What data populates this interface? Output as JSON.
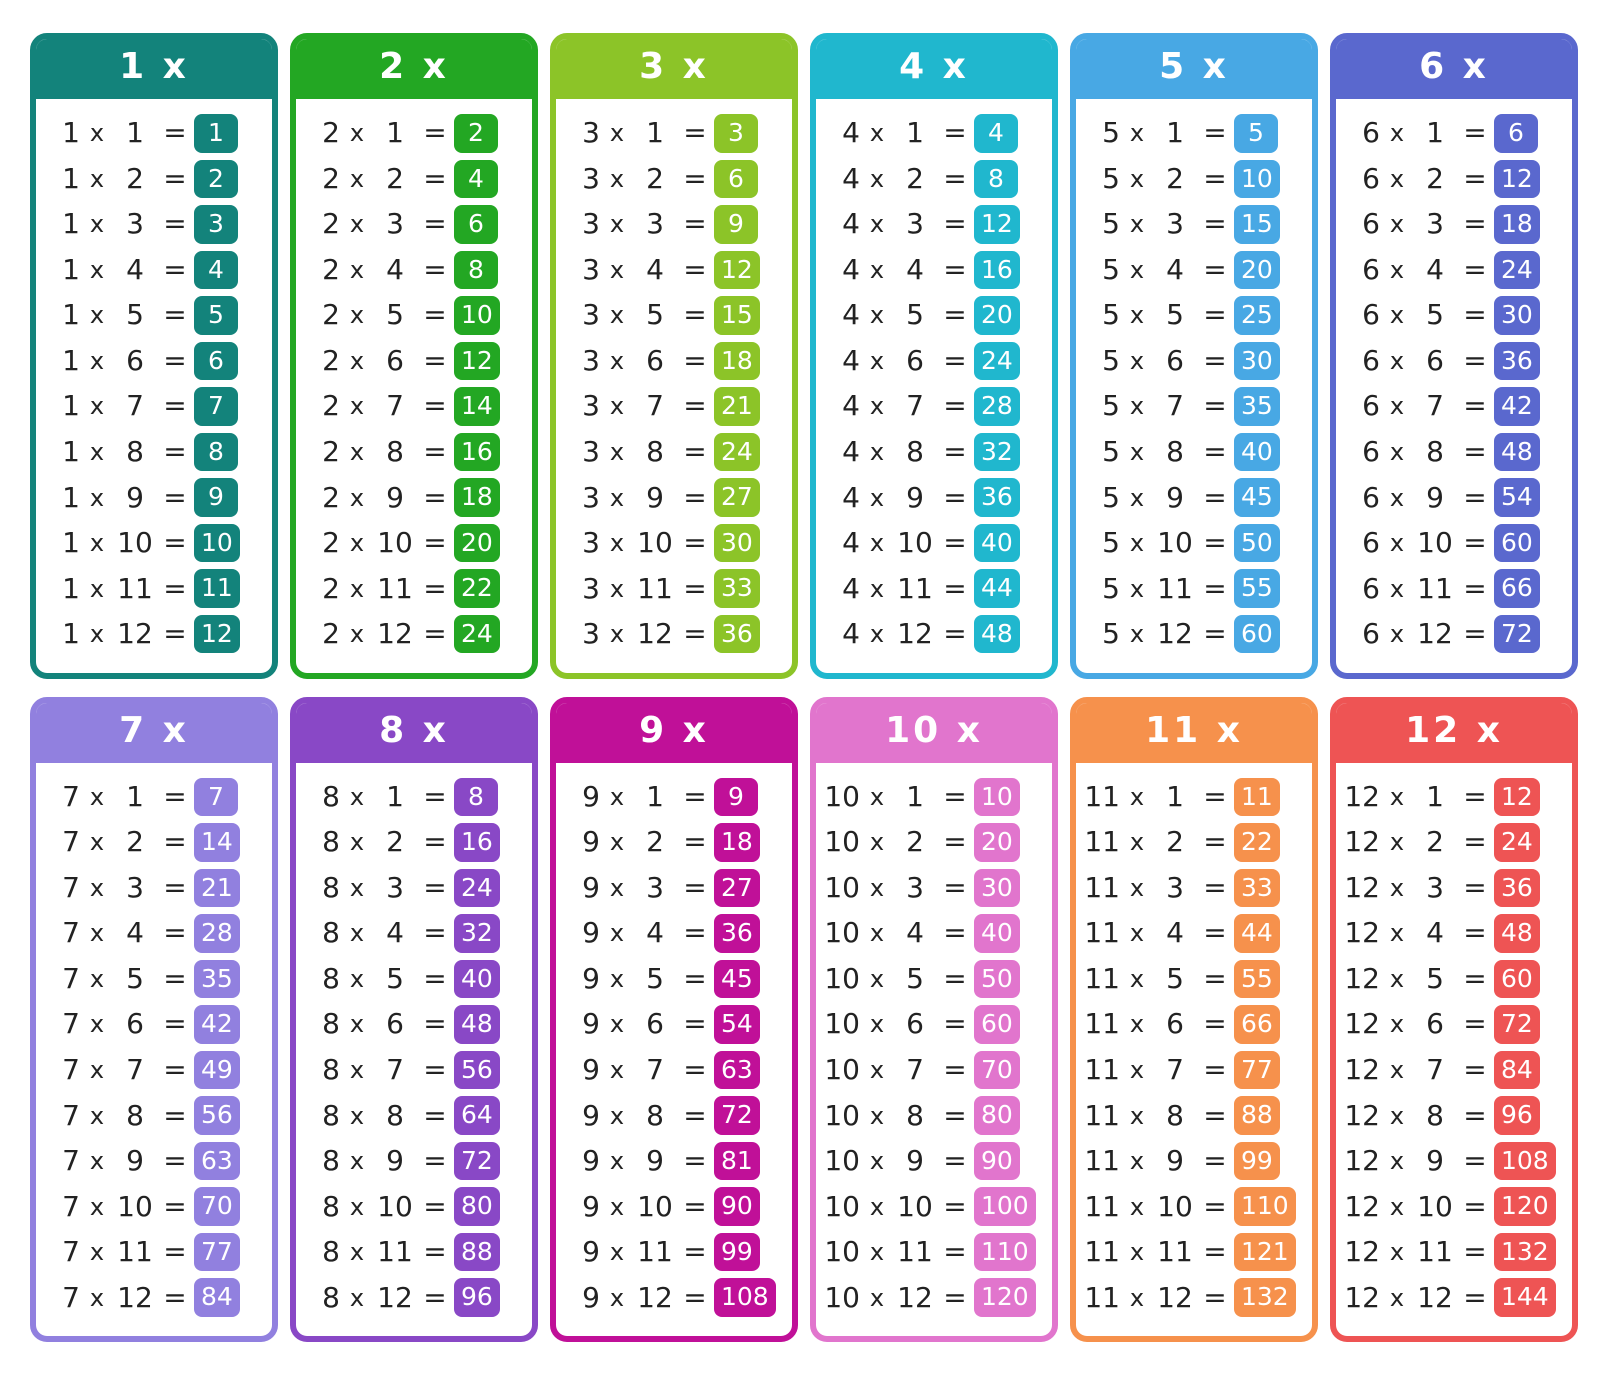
{
  "poster": {
    "background": "#ffffff",
    "text_color": "#222222",
    "badge_text_color": "#ffffff",
    "symbols": {
      "multiply": "x",
      "equals": "="
    },
    "multipliers": [
      1,
      2,
      3,
      4,
      5,
      6,
      7,
      8,
      9,
      10,
      11,
      12
    ],
    "tables": [
      {
        "factor": 1,
        "title": "1 x",
        "color": "#13837B",
        "products": [
          1,
          2,
          3,
          4,
          5,
          6,
          7,
          8,
          9,
          10,
          11,
          12
        ]
      },
      {
        "factor": 2,
        "title": "2 x",
        "color": "#23A723",
        "products": [
          2,
          4,
          6,
          8,
          10,
          12,
          14,
          16,
          18,
          20,
          22,
          24
        ]
      },
      {
        "factor": 3,
        "title": "3 x",
        "color": "#8CC428",
        "products": [
          3,
          6,
          9,
          12,
          15,
          18,
          21,
          24,
          27,
          30,
          33,
          36
        ]
      },
      {
        "factor": 4,
        "title": "4 x",
        "color": "#20B7CE",
        "products": [
          4,
          8,
          12,
          16,
          20,
          24,
          28,
          32,
          36,
          40,
          44,
          48
        ]
      },
      {
        "factor": 5,
        "title": "5 x",
        "color": "#48A8E4",
        "products": [
          5,
          10,
          15,
          20,
          25,
          30,
          35,
          40,
          45,
          50,
          55,
          60
        ]
      },
      {
        "factor": 6,
        "title": "6 x",
        "color": "#5A68CE",
        "products": [
          6,
          12,
          18,
          24,
          30,
          36,
          42,
          48,
          54,
          60,
          66,
          72
        ]
      },
      {
        "factor": 7,
        "title": "7 x",
        "color": "#9180DF",
        "products": [
          7,
          14,
          21,
          28,
          35,
          42,
          49,
          56,
          63,
          70,
          77,
          84
        ]
      },
      {
        "factor": 8,
        "title": "8 x",
        "color": "#8948C6",
        "products": [
          8,
          16,
          24,
          32,
          40,
          48,
          56,
          64,
          72,
          80,
          88,
          96
        ]
      },
      {
        "factor": 9,
        "title": "9 x",
        "color": "#C01098",
        "products": [
          9,
          18,
          27,
          36,
          45,
          54,
          63,
          72,
          81,
          90,
          99,
          108
        ]
      },
      {
        "factor": 10,
        "title": "10 x",
        "color": "#E175CD",
        "products": [
          10,
          20,
          30,
          40,
          50,
          60,
          70,
          80,
          90,
          100,
          110,
          120
        ]
      },
      {
        "factor": 11,
        "title": "11 x",
        "color": "#F6914C",
        "products": [
          11,
          22,
          33,
          44,
          55,
          66,
          77,
          88,
          99,
          110,
          121,
          132
        ]
      },
      {
        "factor": 12,
        "title": "12 x",
        "color": "#EE5454",
        "products": [
          12,
          24,
          36,
          48,
          60,
          72,
          84,
          96,
          108,
          120,
          132,
          144
        ]
      }
    ]
  }
}
